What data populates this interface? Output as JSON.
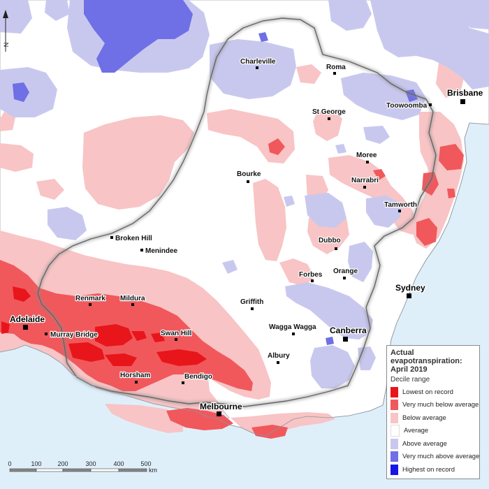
{
  "colors": {
    "sea": "#dfeffa",
    "land": "#ffffff",
    "lowest": "#e8151b",
    "very_below": "#f0585c",
    "below": "#f8c4c5",
    "average": "#ffffff",
    "above": "#c8c8ef",
    "very_above": "#6f6fe6",
    "highest": "#1515e6",
    "basin_border": "#7a7a7a"
  },
  "legend": {
    "title": "Actual\nevapotranspiration:\nApril 2019",
    "subtitle": "Decile range",
    "items": [
      {
        "label": "Lowest on record",
        "color": "#e8151b"
      },
      {
        "label": "Very much below average",
        "color": "#f0585c"
      },
      {
        "label": "Below average",
        "color": "#f8c4c5"
      },
      {
        "label": "Average",
        "color": "#ffffff"
      },
      {
        "label": "Above average",
        "color": "#c8c8ef"
      },
      {
        "label": "Very much above average",
        "color": "#6f6fe6"
      },
      {
        "label": "Highest on record",
        "color": "#1515e6"
      }
    ]
  },
  "north_arrow": {
    "label": "N"
  },
  "scale_bar": {
    "ticks": [
      "0",
      "100",
      "200",
      "300",
      "400",
      "500"
    ],
    "unit": "km"
  },
  "towns": {
    "charleville": "Charleville",
    "roma": "Roma",
    "st_george": "St George",
    "toowoomba": "Toowoomba",
    "moree": "Moree",
    "narrabri": "Narrabri",
    "bourke": "Bourke",
    "tamworth": "Tamworth",
    "broken_hill": "Broken Hill",
    "menindee": "Menindee",
    "dubbo": "Dubbo",
    "orange": "Orange",
    "forbes": "Forbes",
    "renmark": "Renmark",
    "mildura": "Mildura",
    "griffith": "Griffith",
    "wagga_wagga": "Wagga Wagga",
    "murray_bridge": "Murray Bridge",
    "swan_hill": "Swan Hill",
    "albury": "Albury",
    "horsham": "Horsham",
    "bendigo": "Bendigo"
  },
  "cities": {
    "brisbane": "Brisbane",
    "sydney": "Sydney",
    "canberra": "Canberra",
    "adelaide": "Adelaide",
    "melbourne": "Melbourne"
  }
}
